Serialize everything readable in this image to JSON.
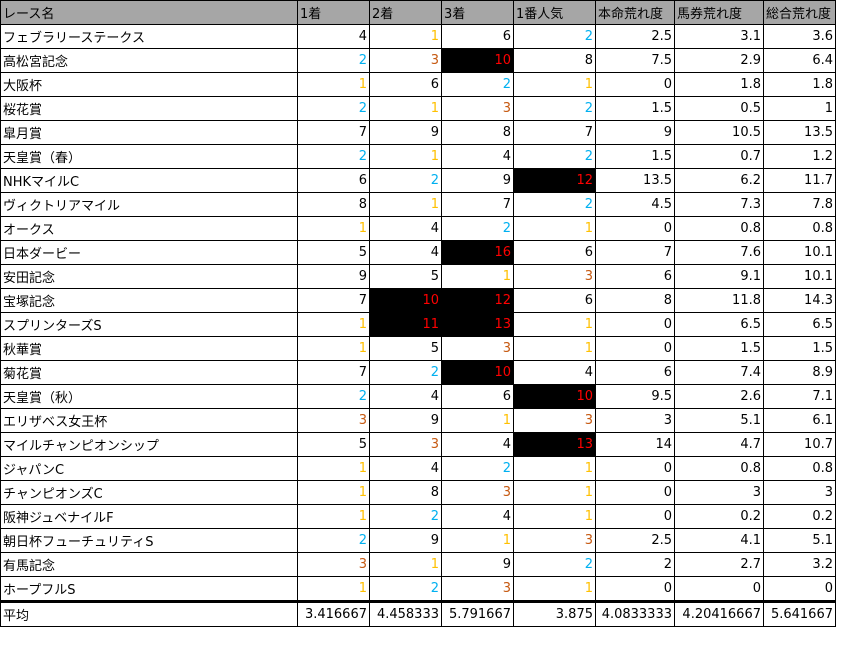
{
  "colors": {
    "first": "#FFC000",
    "second": "#00B0F0",
    "third": "#C65911",
    "highlight_bg": "#000000",
    "highlight_text": "#FF0000",
    "header_bg": "#A6A6A6"
  },
  "headers": [
    "レース名",
    "1着",
    "2着",
    "3着",
    "1番人気",
    "本命荒れ度",
    "馬券荒れ度",
    "総合荒れ度"
  ],
  "rows": [
    [
      "フェブラリーステークス",
      "4",
      "1",
      "6",
      "2",
      "2.5",
      "3.1",
      "3.6"
    ],
    [
      "高松宮記念",
      "2",
      "3",
      "10",
      "8",
      "7.5",
      "2.9",
      "6.4"
    ],
    [
      "大阪杯",
      "1",
      "6",
      "2",
      "1",
      "0",
      "1.8",
      "1.8"
    ],
    [
      "桜花賞",
      "2",
      "1",
      "3",
      "2",
      "1.5",
      "0.5",
      "1"
    ],
    [
      "皐月賞",
      "7",
      "9",
      "8",
      "7",
      "9",
      "10.5",
      "13.5"
    ],
    [
      "天皇賞（春）",
      "2",
      "1",
      "4",
      "2",
      "1.5",
      "0.7",
      "1.2"
    ],
    [
      "NHKマイルC",
      "6",
      "2",
      "9",
      "12",
      "13.5",
      "6.2",
      "11.7"
    ],
    [
      "ヴィクトリアマイル",
      "8",
      "1",
      "7",
      "2",
      "4.5",
      "7.3",
      "7.8"
    ],
    [
      "オークス",
      "1",
      "4",
      "2",
      "1",
      "0",
      "0.8",
      "0.8"
    ],
    [
      "日本ダービー",
      "5",
      "4",
      "16",
      "6",
      "7",
      "7.6",
      "10.1"
    ],
    [
      "安田記念",
      "9",
      "5",
      "1",
      "3",
      "6",
      "9.1",
      "10.1"
    ],
    [
      "宝塚記念",
      "7",
      "10",
      "12",
      "6",
      "8",
      "11.8",
      "14.3"
    ],
    [
      "スプリンターズS",
      "1",
      "11",
      "13",
      "1",
      "0",
      "6.5",
      "6.5"
    ],
    [
      "秋華賞",
      "1",
      "5",
      "3",
      "1",
      "0",
      "1.5",
      "1.5"
    ],
    [
      "菊花賞",
      "7",
      "2",
      "10",
      "4",
      "6",
      "7.4",
      "8.9"
    ],
    [
      "天皇賞（秋）",
      "2",
      "4",
      "6",
      "10",
      "9.5",
      "2.6",
      "7.1"
    ],
    [
      "エリザベス女王杯",
      "3",
      "9",
      "1",
      "3",
      "3",
      "5.1",
      "6.1"
    ],
    [
      "マイルチャンピオンシップ",
      "5",
      "3",
      "4",
      "13",
      "14",
      "4.7",
      "10.7"
    ],
    [
      "ジャパンC",
      "1",
      "4",
      "2",
      "1",
      "0",
      "0.8",
      "0.8"
    ],
    [
      "チャンピオンズC",
      "1",
      "8",
      "3",
      "1",
      "0",
      "3",
      "3"
    ],
    [
      "阪神ジュベナイルF",
      "1",
      "2",
      "4",
      "1",
      "0",
      "0.2",
      "0.2"
    ],
    [
      "朝日杯フューチュリティS",
      "2",
      "9",
      "1",
      "3",
      "2.5",
      "4.1",
      "5.1"
    ],
    [
      "有馬記念",
      "3",
      "1",
      "9",
      "2",
      "2",
      "2.7",
      "3.2"
    ],
    [
      "ホープフルS",
      "1",
      "2",
      "3",
      "1",
      "0",
      "0",
      "0"
    ]
  ],
  "average": [
    "平均",
    "3.416667",
    "4.458333",
    "5.791667",
    "3.875",
    "4.0833333",
    "4.20416667",
    "5.641667"
  ]
}
